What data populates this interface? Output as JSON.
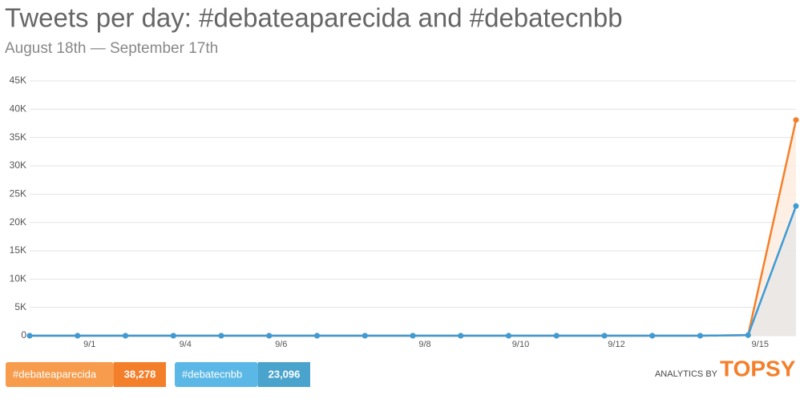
{
  "chart_data": {
    "type": "line",
    "title": "Tweets per day: #debateaparecida and #debatecnbb",
    "subtitle": "August 18th — September 17th",
    "categories": [
      null,
      "9/1",
      null,
      "9/4",
      null,
      "9/6",
      null,
      null,
      "9/8",
      null,
      "9/10",
      null,
      "9/12",
      null,
      null,
      "9/15",
      null
    ],
    "series": [
      {
        "name": "#debateaparecida",
        "color": "#f47f2a",
        "total": {
          "value": 38278,
          "label": "38,278"
        },
        "values": [
          0,
          0,
          0,
          0,
          0,
          0,
          0,
          0,
          0,
          0,
          0,
          0,
          0,
          0,
          0,
          100,
          38100
        ]
      },
      {
        "name": "#debatecnbb",
        "color": "#3d9bd6",
        "total": {
          "value": 23096,
          "label": "23,096"
        },
        "values": [
          0,
          0,
          0,
          0,
          0,
          0,
          0,
          0,
          0,
          0,
          0,
          0,
          0,
          0,
          0,
          100,
          22900
        ]
      }
    ],
    "ylim": [
      0,
      45000
    ],
    "yticks": [
      0,
      {
        "value": 5000,
        "label": "5K"
      },
      {
        "value": 10000,
        "label": "10K"
      },
      {
        "value": 15000,
        "label": "15K"
      },
      {
        "value": 20000,
        "label": "20K"
      },
      {
        "value": 25000,
        "label": "25K"
      },
      {
        "value": 30000,
        "label": "30K"
      },
      {
        "value": 35000,
        "label": "35K"
      },
      {
        "value": 40000,
        "label": "40K"
      },
      {
        "value": 45000,
        "label": "45K"
      }
    ],
    "grid": true,
    "credit": {
      "prefix": "ANALYTICS BY",
      "brand": "TOPSY"
    }
  }
}
